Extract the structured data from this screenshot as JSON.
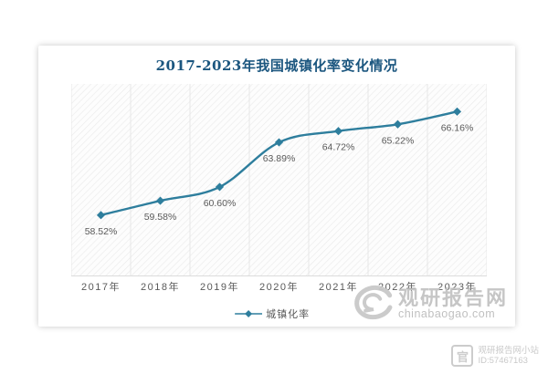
{
  "chart_data": {
    "type": "line",
    "title": "2017-2023年我国城镇化率变化情况",
    "categories": [
      "2017年",
      "2018年",
      "2019年",
      "2020年",
      "2021年",
      "2022年",
      "2023年"
    ],
    "series": [
      {
        "name": "城镇化率",
        "values": [
          58.52,
          59.58,
          60.6,
          63.89,
          64.72,
          65.22,
          66.16
        ]
      }
    ],
    "point_labels": [
      "58.52%",
      "59.58%",
      "60.60%",
      "63.89%",
      "64.72%",
      "65.22%",
      "66.16%"
    ],
    "xlabel": "",
    "ylabel": "",
    "ylim": [
      54,
      68.2
    ],
    "grid": "vertical-light",
    "legend_position": "bottom",
    "line_color": "#2e7e9d",
    "title_color": "#1b567f",
    "label_color": "#595959"
  },
  "legend": {
    "label": "城镇化率"
  },
  "watermark": {
    "brand": "观研报告网",
    "domain": "chinabaogao.com"
  },
  "footer_badge": {
    "icon_char": "官",
    "site_name": "观研报告网小站",
    "site_id": "ID:57467163"
  }
}
